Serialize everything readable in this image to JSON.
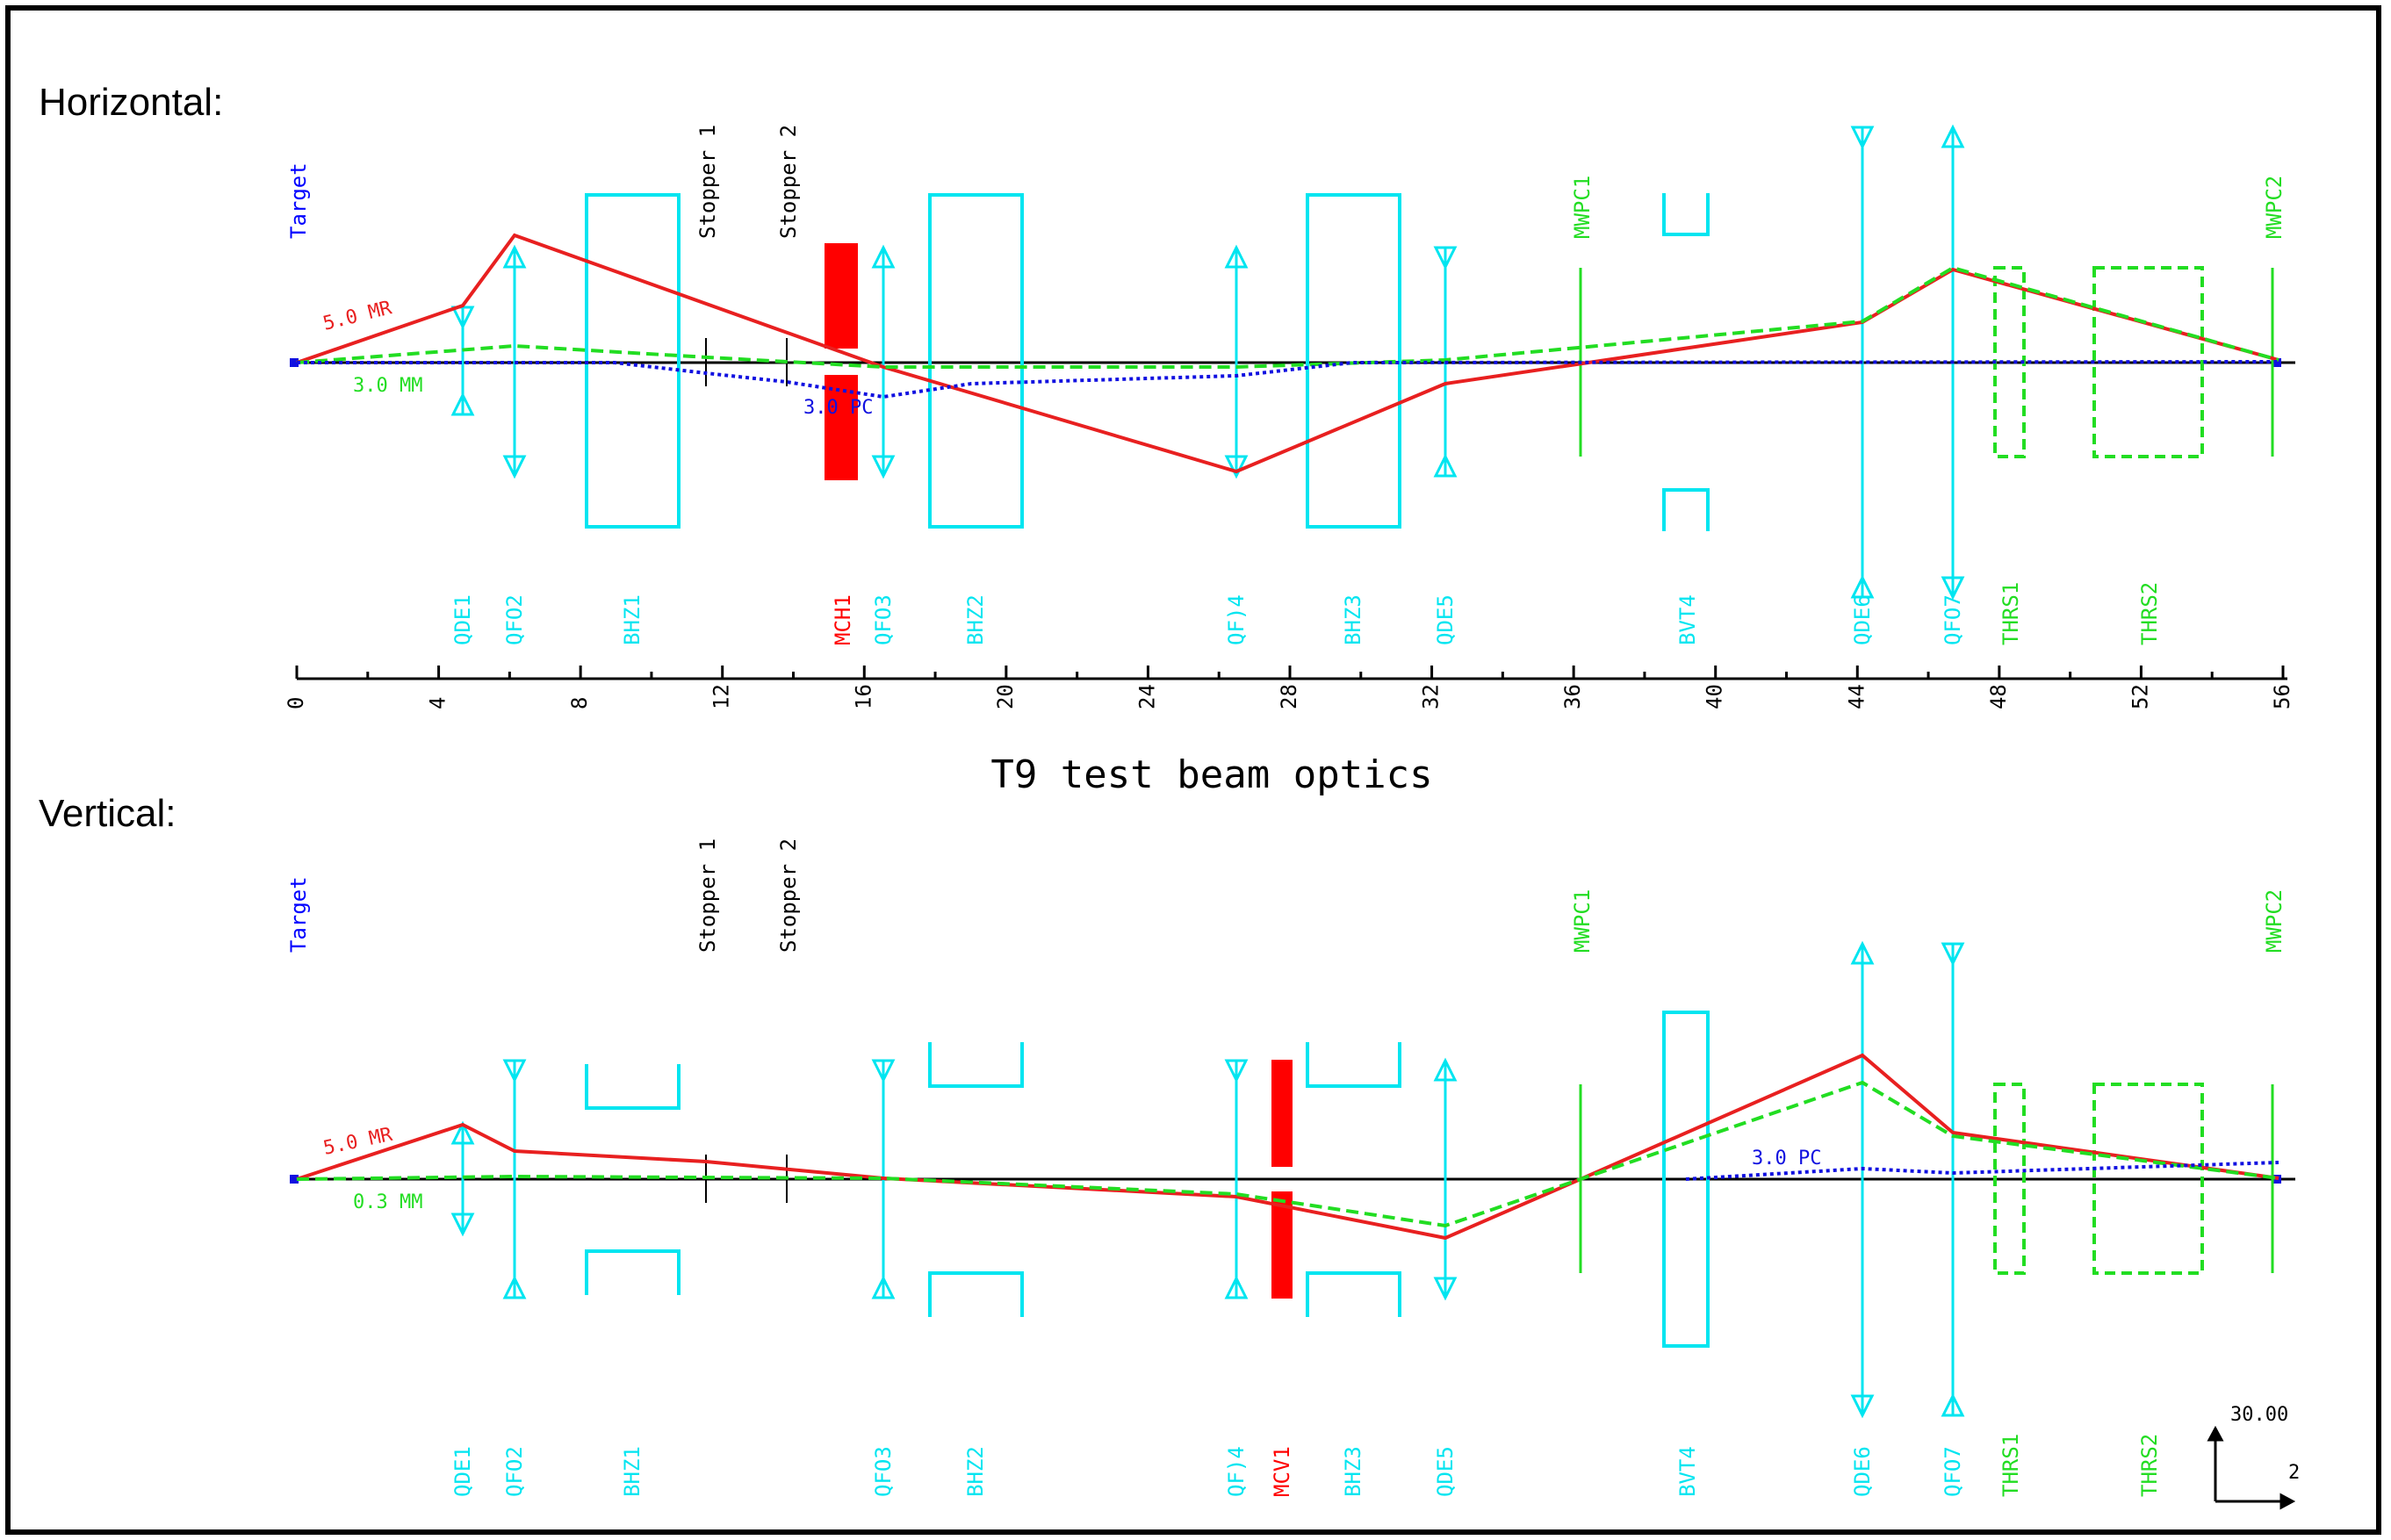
{
  "page": {
    "title": "T9 test beam optics",
    "horizontal_label": "Horizontal:",
    "vertical_label": "Vertical:"
  },
  "colors": {
    "quad": "#00e5f0",
    "detector": "#22dd22",
    "collimator": "#ff0000",
    "target": "#0000ff",
    "stopper": "#000000",
    "ray_red": "#e82020",
    "ray_green": "#22dd22",
    "ray_blue": "#1010e0"
  },
  "axis": {
    "ticks": [
      "0",
      "4",
      "8",
      "12",
      "16",
      "20",
      "24",
      "28",
      "32",
      "36",
      "40",
      "44",
      "48",
      "52",
      "56"
    ],
    "scale_vertical": "30.00",
    "scale_horizontal": "2"
  },
  "horizontal": {
    "top_labels": [
      {
        "id": "target",
        "text": "Target",
        "color": "target"
      },
      {
        "id": "stopper1",
        "text": "Stopper 1",
        "color": "stopper"
      },
      {
        "id": "stopper2",
        "text": "Stopper 2",
        "color": "stopper"
      },
      {
        "id": "mwpc1",
        "text": "MWPC1",
        "color": "detector"
      },
      {
        "id": "mwpc2",
        "text": "MWPC2",
        "color": "detector"
      }
    ],
    "bottom_labels": [
      {
        "id": "qde1",
        "text": "QDE1",
        "color": "quad"
      },
      {
        "id": "qfo2",
        "text": "QFO2",
        "color": "quad"
      },
      {
        "id": "bhz1",
        "text": "BHZ1",
        "color": "quad"
      },
      {
        "id": "mch1",
        "text": "MCH1",
        "color": "collimator"
      },
      {
        "id": "qfo3",
        "text": "QFO3",
        "color": "quad"
      },
      {
        "id": "bhz2",
        "text": "BHZ2",
        "color": "quad"
      },
      {
        "id": "qfo4",
        "text": "QF)4",
        "color": "quad"
      },
      {
        "id": "bhz3",
        "text": "BHZ3",
        "color": "quad"
      },
      {
        "id": "qde5",
        "text": "QDE5",
        "color": "quad"
      },
      {
        "id": "bvt4",
        "text": "BVT4",
        "color": "quad"
      },
      {
        "id": "qde6",
        "text": "QDE6",
        "color": "quad"
      },
      {
        "id": "qfo7",
        "text": "QFO7",
        "color": "quad"
      },
      {
        "id": "thrs1",
        "text": "THRS1",
        "color": "detector"
      },
      {
        "id": "thrs2",
        "text": "THRS2",
        "color": "detector"
      }
    ],
    "ray_labels": [
      {
        "id": "ray-red-label",
        "text": "5.0 MR",
        "color": "ray_red"
      },
      {
        "id": "ray-green-label",
        "text": "3.0 MM",
        "color": "ray_green"
      },
      {
        "id": "ray-blue-label",
        "text": "3.0 PC",
        "color": "ray_blue"
      }
    ]
  },
  "vertical": {
    "top_labels": [
      {
        "id": "target",
        "text": "Target",
        "color": "target"
      },
      {
        "id": "stopper1",
        "text": "Stopper 1",
        "color": "stopper"
      },
      {
        "id": "stopper2",
        "text": "Stopper 2",
        "color": "stopper"
      },
      {
        "id": "mwpc1",
        "text": "MWPC1",
        "color": "detector"
      },
      {
        "id": "mwpc2",
        "text": "MWPC2",
        "color": "detector"
      }
    ],
    "bottom_labels": [
      {
        "id": "qde1",
        "text": "QDE1",
        "color": "quad"
      },
      {
        "id": "qfo2",
        "text": "QFO2",
        "color": "quad"
      },
      {
        "id": "bhz1",
        "text": "BHZ1",
        "color": "quad"
      },
      {
        "id": "qfo3",
        "text": "QFO3",
        "color": "quad"
      },
      {
        "id": "bhz2",
        "text": "BHZ2",
        "color": "quad"
      },
      {
        "id": "qfo4",
        "text": "QF)4",
        "color": "quad"
      },
      {
        "id": "mcv1",
        "text": "MCV1",
        "color": "collimator"
      },
      {
        "id": "bhz3",
        "text": "BHZ3",
        "color": "quad"
      },
      {
        "id": "qde5",
        "text": "QDE5",
        "color": "quad"
      },
      {
        "id": "bvt4",
        "text": "BVT4",
        "color": "quad"
      },
      {
        "id": "qde6",
        "text": "QDE6",
        "color": "quad"
      },
      {
        "id": "qfo7",
        "text": "QFO7",
        "color": "quad"
      },
      {
        "id": "thrs1",
        "text": "THRS1",
        "color": "detector"
      },
      {
        "id": "thrs2",
        "text": "THRS2",
        "color": "detector"
      }
    ],
    "ray_labels": [
      {
        "id": "ray-red-label",
        "text": "5.0 MR",
        "color": "ray_red"
      },
      {
        "id": "ray-green-label",
        "text": "0.3 MM",
        "color": "ray_green"
      },
      {
        "id": "ray-blue-label",
        "text": "3.0 PC",
        "color": "ray_blue"
      }
    ]
  }
}
